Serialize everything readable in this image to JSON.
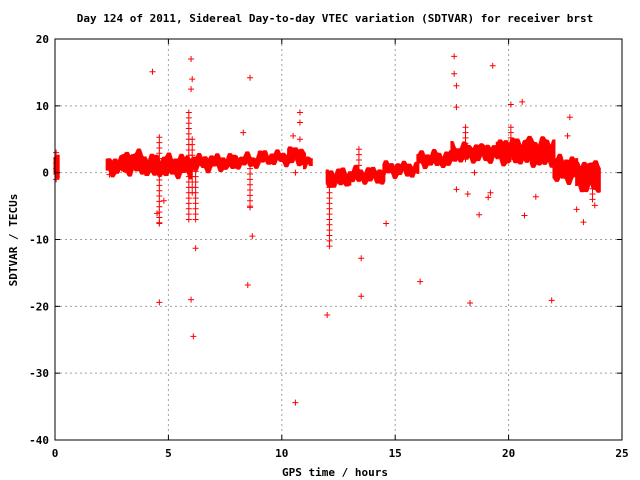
{
  "chart_data": {
    "type": "scatter",
    "title": "Day 124 of 2011, Sidereal Day-to-day VTEC variation (SDTVAR) for receiver brst",
    "xlabel": "GPS time / hours",
    "ylabel": "SDTVAR / TECUs",
    "xlim": [
      0,
      25
    ],
    "ylim": [
      -40,
      20
    ],
    "xticks": [
      0,
      5,
      10,
      15,
      20,
      25
    ],
    "yticks": [
      -40,
      -30,
      -20,
      -10,
      0,
      10,
      20
    ],
    "grid": true,
    "marker": "+",
    "series_color": "#ff0000",
    "bands": [
      {
        "x0": 0.0,
        "x1": 0.15,
        "center": 0.8,
        "spread": 1.8
      },
      {
        "x0": 2.3,
        "x1": 3.0,
        "center": 1.0,
        "spread": 1.2
      },
      {
        "x0": 3.0,
        "x1": 4.0,
        "center": 1.5,
        "spread": 1.6
      },
      {
        "x0": 4.0,
        "x1": 6.0,
        "center": 1.0,
        "spread": 1.5
      },
      {
        "x0": 6.0,
        "x1": 8.0,
        "center": 1.5,
        "spread": 1.0
      },
      {
        "x0": 8.0,
        "x1": 9.0,
        "center": 1.8,
        "spread": 0.8
      },
      {
        "x0": 9.0,
        "x1": 10.3,
        "center": 2.2,
        "spread": 0.8
      },
      {
        "x0": 10.3,
        "x1": 11.0,
        "center": 2.5,
        "spread": 1.2
      },
      {
        "x0": 11.0,
        "x1": 11.3,
        "center": 1.5,
        "spread": 0.6
      },
      {
        "x0": 12.0,
        "x1": 13.0,
        "center": -0.8,
        "spread": 1.2
      },
      {
        "x0": 13.0,
        "x1": 14.5,
        "center": -0.4,
        "spread": 1.0
      },
      {
        "x0": 14.5,
        "x1": 16.0,
        "center": 0.5,
        "spread": 0.9
      },
      {
        "x0": 16.0,
        "x1": 17.5,
        "center": 2.0,
        "spread": 1.0
      },
      {
        "x0": 17.5,
        "x1": 19.5,
        "center": 3.0,
        "spread": 1.2
      },
      {
        "x0": 19.5,
        "x1": 21.0,
        "center": 3.2,
        "spread": 1.8
      },
      {
        "x0": 21.0,
        "x1": 22.0,
        "center": 3.0,
        "spread": 2.0
      },
      {
        "x0": 22.0,
        "x1": 23.0,
        "center": 0.5,
        "spread": 1.8
      },
      {
        "x0": 23.0,
        "x1": 24.0,
        "center": -0.5,
        "spread": 2.2
      }
    ],
    "spikes": [
      {
        "x": 0.05,
        "y0": -1.0,
        "y1": 3.0
      },
      {
        "x": 4.6,
        "y0": -7.5,
        "y1": 6.0
      },
      {
        "x": 5.9,
        "y0": -7.0,
        "y1": 9.5
      },
      {
        "x": 6.05,
        "y0": -3.0,
        "y1": 5.0
      },
      {
        "x": 6.2,
        "y0": -7.0,
        "y1": 2.0
      },
      {
        "x": 8.6,
        "y0": -5.0,
        "y1": 1.0
      },
      {
        "x": 12.1,
        "y0": -11.0,
        "y1": -0.5
      },
      {
        "x": 13.4,
        "y0": -0.5,
        "y1": 3.5
      },
      {
        "x": 18.1,
        "y0": 2.0,
        "y1": 7.5
      },
      {
        "x": 20.1,
        "y0": 2.0,
        "y1": 7.0
      },
      {
        "x": 23.7,
        "y0": -4.0,
        "y1": 1.5
      }
    ],
    "points": [
      {
        "x": 4.3,
        "y": 15.1
      },
      {
        "x": 4.6,
        "y": -19.4
      },
      {
        "x": 6.0,
        "y": 17.0
      },
      {
        "x": 6.05,
        "y": 14.0
      },
      {
        "x": 6.0,
        "y": 12.5
      },
      {
        "x": 6.1,
        "y": -24.5
      },
      {
        "x": 6.0,
        "y": -19.0
      },
      {
        "x": 6.2,
        "y": -11.3
      },
      {
        "x": 8.6,
        "y": 14.2
      },
      {
        "x": 8.5,
        "y": -16.8
      },
      {
        "x": 8.7,
        "y": -9.5
      },
      {
        "x": 8.6,
        "y": -5.2
      },
      {
        "x": 8.3,
        "y": 6.0
      },
      {
        "x": 10.6,
        "y": -34.4
      },
      {
        "x": 10.8,
        "y": 9.0
      },
      {
        "x": 10.8,
        "y": 7.5
      },
      {
        "x": 10.5,
        "y": 5.5
      },
      {
        "x": 10.8,
        "y": 5.0
      },
      {
        "x": 10.6,
        "y": 0.0
      },
      {
        "x": 12.0,
        "y": -21.3
      },
      {
        "x": 13.5,
        "y": -12.8
      },
      {
        "x": 13.5,
        "y": -18.5
      },
      {
        "x": 14.6,
        "y": -7.6
      },
      {
        "x": 14.6,
        "y": 1.3
      },
      {
        "x": 16.1,
        "y": -16.3
      },
      {
        "x": 17.6,
        "y": 17.4
      },
      {
        "x": 17.6,
        "y": 14.8
      },
      {
        "x": 17.7,
        "y": 13.0
      },
      {
        "x": 17.7,
        "y": 9.8
      },
      {
        "x": 17.7,
        "y": -2.5
      },
      {
        "x": 18.3,
        "y": -19.5
      },
      {
        "x": 18.2,
        "y": -3.2
      },
      {
        "x": 18.7,
        "y": -6.3
      },
      {
        "x": 18.5,
        "y": 0.0
      },
      {
        "x": 19.1,
        "y": -3.7
      },
      {
        "x": 19.2,
        "y": -3.0
      },
      {
        "x": 19.3,
        "y": 16.0
      },
      {
        "x": 20.1,
        "y": 10.2
      },
      {
        "x": 20.6,
        "y": 10.6
      },
      {
        "x": 20.7,
        "y": -6.4
      },
      {
        "x": 21.2,
        "y": -3.6
      },
      {
        "x": 21.9,
        "y": -19.1
      },
      {
        "x": 22.6,
        "y": 5.5
      },
      {
        "x": 22.7,
        "y": 8.3
      },
      {
        "x": 23.0,
        "y": -5.5
      },
      {
        "x": 23.2,
        "y": -2.0
      },
      {
        "x": 23.3,
        "y": -7.4
      },
      {
        "x": 23.8,
        "y": -4.9
      },
      {
        "x": 2.4,
        "y": -0.3
      },
      {
        "x": 4.5,
        "y": -6.1
      },
      {
        "x": 4.6,
        "y": -7.6
      },
      {
        "x": 4.8,
        "y": -4.2
      }
    ]
  }
}
